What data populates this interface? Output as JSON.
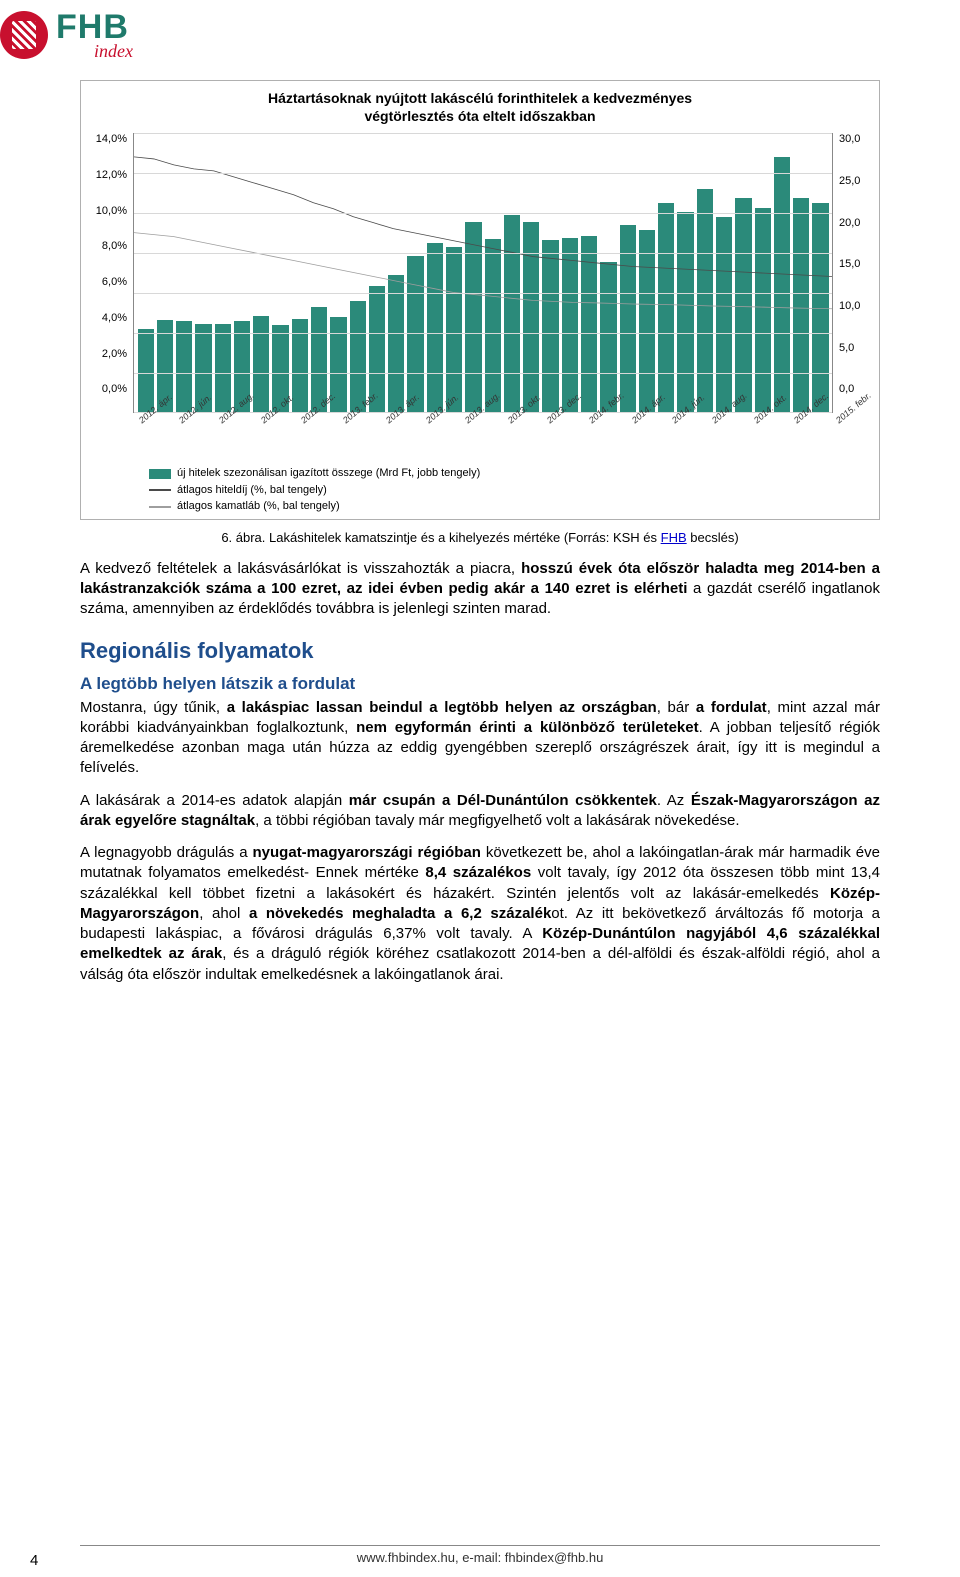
{
  "logo": {
    "brand": "FHB",
    "sub": "index"
  },
  "chart": {
    "type": "bar+line",
    "title_line1": "Háztartásoknak nyújtott lakáscélú forinthitelek a kedvezményes",
    "title_line2": "végtörlesztés óta eltelt időszakban",
    "background_color": "#ffffff",
    "grid_color": "#d8d8d8",
    "bar_color": "#2b8a7a",
    "line1_color": "#4a4a4a",
    "line2_color": "#9e9e9e",
    "y_left": {
      "min": 0,
      "max": 14,
      "step": 2,
      "format": "percent",
      "ticks": [
        "14,0%",
        "12,0%",
        "10,0%",
        "8,0%",
        "6,0%",
        "4,0%",
        "2,0%",
        "0,0%"
      ]
    },
    "y_right": {
      "min": 0,
      "max": 30,
      "step": 5,
      "ticks": [
        "30,0",
        "25,0",
        "20,0",
        "15,0",
        "10,0",
        "5,0",
        "0,0"
      ]
    },
    "x_labels": [
      "2012. ápr.",
      "2012. jún.",
      "2012. aug.",
      "2012. okt.",
      "2012. dec.",
      "2013. febr.",
      "2013. ápr.",
      "2013. jún.",
      "2013. aug.",
      "2013. okt.",
      "2013. dec.",
      "2014. febr.",
      "2014. ápr.",
      "2014. jún.",
      "2014. aug.",
      "2014. okt.",
      "2014. dec.",
      "2015. febr."
    ],
    "bar_values": [
      9.0,
      9.9,
      9.8,
      9.5,
      9.5,
      9.8,
      10.4,
      9.4,
      10.0,
      11.3,
      10.3,
      12.0,
      13.6,
      14.8,
      16.8,
      18.2,
      17.8,
      20.5,
      18.6,
      21.2,
      20.5,
      18.5,
      18.8,
      19.0,
      16.2,
      20.2,
      19.6,
      22.5,
      21.5,
      24.0,
      21.0,
      23.0,
      22.0,
      27.5,
      23.0,
      22.5
    ],
    "line1_values": [
      12.8,
      12.7,
      12.4,
      12.2,
      12.1,
      11.8,
      11.5,
      11.2,
      10.9,
      10.5,
      10.2,
      9.8,
      9.5,
      9.2,
      9.0,
      8.8,
      8.6,
      8.4,
      8.2,
      8.0,
      7.8,
      7.7,
      7.6,
      7.5,
      7.4,
      7.3,
      7.25,
      7.2,
      7.15,
      7.1,
      7.05,
      7.0,
      6.95,
      6.9,
      6.85,
      6.8
    ],
    "line2_values": [
      9.0,
      8.9,
      8.8,
      8.6,
      8.4,
      8.2,
      8.0,
      7.8,
      7.6,
      7.4,
      7.2,
      7.0,
      6.8,
      6.6,
      6.4,
      6.2,
      6.0,
      5.9,
      5.8,
      5.7,
      5.6,
      5.55,
      5.5,
      5.48,
      5.45,
      5.42,
      5.4,
      5.38,
      5.35,
      5.32,
      5.3,
      5.28,
      5.25,
      5.22,
      5.2,
      5.18
    ],
    "legend": [
      "új hitelek szezonálisan igazított összege (Mrd Ft, jobb tengely)",
      "átlagos hiteldíj (%, bal tengely)",
      "átlagos kamatláb (%, bal tengely)"
    ]
  },
  "caption": {
    "prefix": "6. ábra.",
    "text": " Lakáshitelek kamatszintje és a kihelyezés mértéke (Forrás: KSH és ",
    "link": "FHB",
    "suffix": " becslés)"
  },
  "intro": {
    "part1": "A kedvező feltételek a lakásvásárlókat is visszahozták a piacra, ",
    "bold1": "hosszú évek óta először haladta meg 2014-ben a lakástranzakciók száma a 100 ezret, az idei évben pedig akár a 140 ezret is elérheti",
    "part2": " a gazdát cserélő ingatlanok száma, amennyiben az érdeklődés továbbra is jelenlegi szinten marad."
  },
  "h1": "Regionális folyamatok",
  "h2": "A legtöbb helyen látszik a fordulat",
  "p1": {
    "a": "Mostanra, úgy tűnik, ",
    "b1": "a lakáspiac lassan beindul a legtöbb helyen az országban",
    "b": ", bár ",
    "b2": "a fordulat",
    "c": ", mint azzal már korábbi kiadványainkban foglalkoztunk, ",
    "b3": "nem egyformán érinti a különböző területeket",
    "d": ". A jobban teljesítő régiók áremelkedése azonban maga után húzza az eddig gyengébben szereplő országrészek árait, így itt is megindul a felívelés."
  },
  "p2": {
    "a": "A lakásárak a 2014-es adatok alapján ",
    "b1": "már csupán a Dél-Dunántúlon csökkentek",
    "b": ". Az ",
    "b2": "Észak-Magyarországon az árak egyelőre stagnáltak",
    "c": ", a többi régióban tavaly már megfigyelhető volt a lakásárak növekedése."
  },
  "p3": {
    "a": "A legnagyobb drágulás a ",
    "b1": "nyugat-magyarországi régióban",
    "b": " következett be, ahol a lakóingatlan-árak már harmadik éve mutatnak folyamatos emelkedést- Ennek mértéke ",
    "b2": "8,4 százalékos",
    "c": " volt tavaly, így 2012 óta összesen több mint 13,4 százalékkal kell többet fizetni a lakásokért és házakért. Szintén jelentős volt az lakásár-emelkedés ",
    "b3": "Közép-Magyarországon",
    "d": ", ahol ",
    "b4": "a növekedés meghaladta a 6,2 százalék",
    "e": "ot. Az itt bekövetkező árváltozás fő motorja a budapesti lakáspiac, a fővárosi drágulás 6,37% volt tavaly. A ",
    "b5": "Közép-Dunántúlon nagyjából 4,6 százalékkal emelkedtek az árak",
    "f": ", és a dráguló régiók köréhez csatlakozott 2014-ben a dél-alföldi és észak-alföldi régió, ahol a válság óta először indultak emelkedésnek a lakóingatlanok árai."
  },
  "footer": {
    "text": "www.fhbindex.hu, e-mail: fhbindex@fhb.hu"
  },
  "page_number": "4"
}
